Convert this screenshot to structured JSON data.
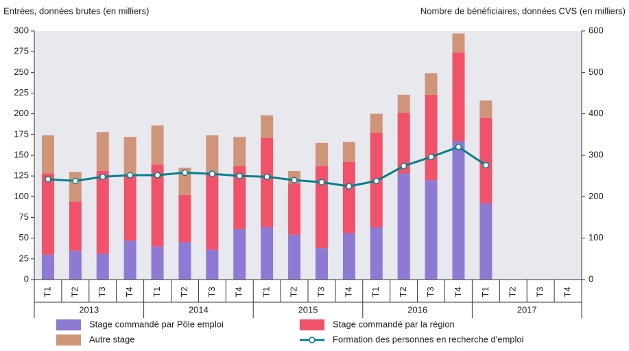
{
  "chart_data": {
    "type": "bar",
    "stacked": true,
    "y_label": "Entrées, données brutes (en milliers)",
    "y2_label": "Nombre de bénéficiaires, données CVS (en milliers)",
    "categories": [
      "T1",
      "T2",
      "T3",
      "T4",
      "T1",
      "T2",
      "T3",
      "T4",
      "T1",
      "T2",
      "T3",
      "T4",
      "T1",
      "T2",
      "T3",
      "T4",
      "T1",
      "T2",
      "T3",
      "T4"
    ],
    "groups": [
      "2013",
      "2014",
      "2015",
      "2016",
      "2017"
    ],
    "series": [
      {
        "name": "Stage commandé par Pôle emploi",
        "color": "#8e79d4",
        "values": [
          30,
          35,
          31,
          47,
          40,
          45,
          36,
          61,
          63,
          54,
          38,
          56,
          63,
          128,
          120,
          167,
          92,
          null,
          null,
          null
        ]
      },
      {
        "name": "Stage commandé par la région",
        "color": "#f2516a",
        "values": [
          98,
          59,
          100,
          78,
          99,
          57,
          91,
          76,
          108,
          62,
          99,
          86,
          114,
          73,
          103,
          107,
          103,
          null,
          null,
          null
        ]
      },
      {
        "name": "Autre stage",
        "color": "#d09478",
        "values": [
          46,
          36,
          47,
          47,
          47,
          33,
          47,
          35,
          27,
          15,
          28,
          24,
          23,
          22,
          26,
          23,
          21,
          null,
          null,
          null
        ]
      },
      {
        "name": "Formation des personnes en recherche d'emploi",
        "color": "#00808a",
        "type": "line",
        "axis": "y2",
        "values": [
          242,
          238,
          248,
          252,
          252,
          258,
          255,
          250,
          248,
          240,
          235,
          225,
          238,
          274,
          296,
          320,
          276,
          null,
          null,
          null
        ]
      }
    ],
    "ylim": [
      0,
      300
    ],
    "yticks": [
      0,
      25,
      50,
      75,
      100,
      125,
      150,
      175,
      200,
      225,
      250,
      275,
      300
    ],
    "y2lim": [
      0,
      600
    ],
    "y2ticks": [
      0,
      100,
      200,
      300,
      400,
      500,
      600
    ]
  }
}
